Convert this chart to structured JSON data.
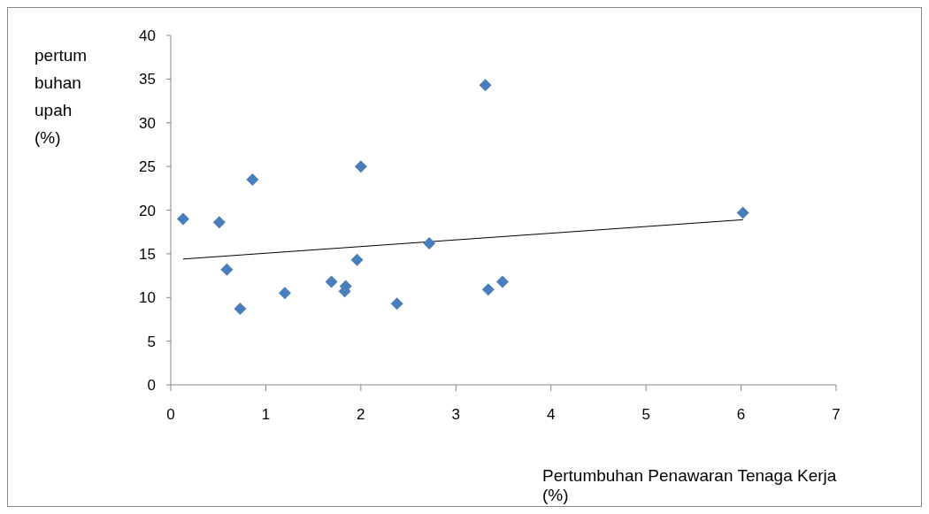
{
  "chart_data": {
    "type": "scatter",
    "xlabel": "Pertumbuhan Penawaran Tenaga Kerja (%)",
    "ylabel": "pertumbuhan upah (%)",
    "xlim": [
      0,
      7
    ],
    "xticks": [
      0,
      1,
      2,
      3,
      4,
      5,
      6,
      7
    ],
    "ylim": [
      0,
      40
    ],
    "yticks": [
      0,
      5,
      10,
      15,
      20,
      25,
      30,
      35,
      40
    ],
    "series": [
      {
        "marker": "diamond",
        "color": "#4a7ebb",
        "x": [
          0.13,
          0.51,
          0.86,
          0.59,
          0.73,
          1.2,
          1.69,
          1.84,
          1.83,
          1.96,
          2.0,
          2.38,
          2.72,
          3.31,
          3.34,
          3.49,
          6.02
        ],
        "values": [
          19.0,
          18.6,
          23.5,
          13.2,
          8.7,
          10.5,
          11.8,
          11.3,
          10.7,
          14.3,
          25.0,
          9.3,
          16.2,
          34.3,
          10.9,
          11.8,
          19.7
        ]
      },
      {
        "type": "line",
        "color": "#000000",
        "x": [
          0.13,
          6.02
        ],
        "values": [
          14.4,
          18.9
        ]
      }
    ]
  }
}
